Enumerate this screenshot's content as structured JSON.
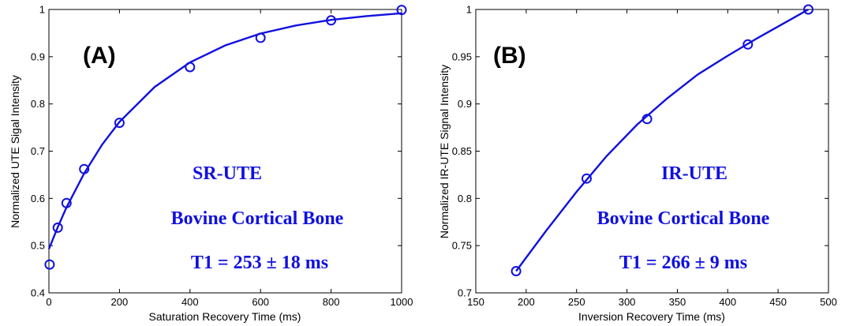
{
  "chart_data": [
    {
      "type": "scatter",
      "panel_label": "(A)",
      "xlabel": "Saturation Recovery Time (ms)",
      "ylabel": "Normalized UTE Sigal Intensity",
      "xlim": [
        0,
        1000
      ],
      "ylim": [
        0.4,
        1.0
      ],
      "xticks": [
        0,
        200,
        400,
        600,
        800,
        1000
      ],
      "yticks": [
        0.4,
        0.5,
        0.6,
        0.7,
        0.8,
        0.9,
        1.0
      ],
      "xtick_labels": [
        "0",
        "200",
        "400",
        "600",
        "800",
        "1000"
      ],
      "ytick_labels": [
        "0.4",
        "0.5",
        "0.6",
        "0.7",
        "0.8",
        "0.9",
        "1"
      ],
      "grid": false,
      "annotations": [
        "SR-UTE",
        "Bovine Cortical Bone",
        "T1 = 253 ± 18 ms"
      ],
      "color": "#1010e0",
      "points": {
        "x": [
          2,
          25,
          50,
          100,
          200,
          400,
          600,
          800,
          1000
        ],
        "y": [
          0.46,
          0.538,
          0.59,
          0.662,
          0.76,
          0.878,
          0.94,
          0.977,
          0.999
        ]
      },
      "fit": {
        "x": [
          0,
          25,
          50,
          100,
          150,
          200,
          300,
          400,
          500,
          600,
          700,
          800,
          900,
          1000
        ],
        "y": [
          0.493,
          0.539,
          0.581,
          0.653,
          0.713,
          0.762,
          0.836,
          0.888,
          0.924,
          0.949,
          0.966,
          0.978,
          0.986,
          0.992
        ]
      }
    },
    {
      "type": "scatter",
      "panel_label": "(B)",
      "xlabel": "Inversion Recovery Time (ms)",
      "ylabel": "Normalized IR-UTE Signal Intensity",
      "xlim": [
        150,
        500
      ],
      "ylim": [
        0.7,
        1.0
      ],
      "xticks": [
        150,
        200,
        250,
        300,
        350,
        400,
        450,
        500
      ],
      "yticks": [
        0.7,
        0.75,
        0.8,
        0.85,
        0.9,
        0.95,
        1.0
      ],
      "xtick_labels": [
        "150",
        "200",
        "250",
        "300",
        "350",
        "400",
        "450",
        "500"
      ],
      "ytick_labels": [
        "0.7",
        "0.75",
        "0.8",
        "0.85",
        "0.9",
        "0.95",
        "1"
      ],
      "grid": false,
      "annotations": [
        "IR-UTE",
        "Bovine Cortical Bone",
        "T1 = 266 ± 9 ms"
      ],
      "color": "#1010e0",
      "points": {
        "x": [
          190,
          260,
          320,
          420,
          480
        ],
        "y": [
          0.723,
          0.821,
          0.884,
          0.963,
          1.0
        ]
      },
      "fit": {
        "x": [
          190,
          220,
          250,
          280,
          310,
          340,
          370,
          400,
          430,
          460,
          480
        ],
        "y": [
          0.723,
          0.766,
          0.807,
          0.845,
          0.878,
          0.906,
          0.931,
          0.951,
          0.97,
          0.988,
          1.0
        ]
      }
    }
  ]
}
